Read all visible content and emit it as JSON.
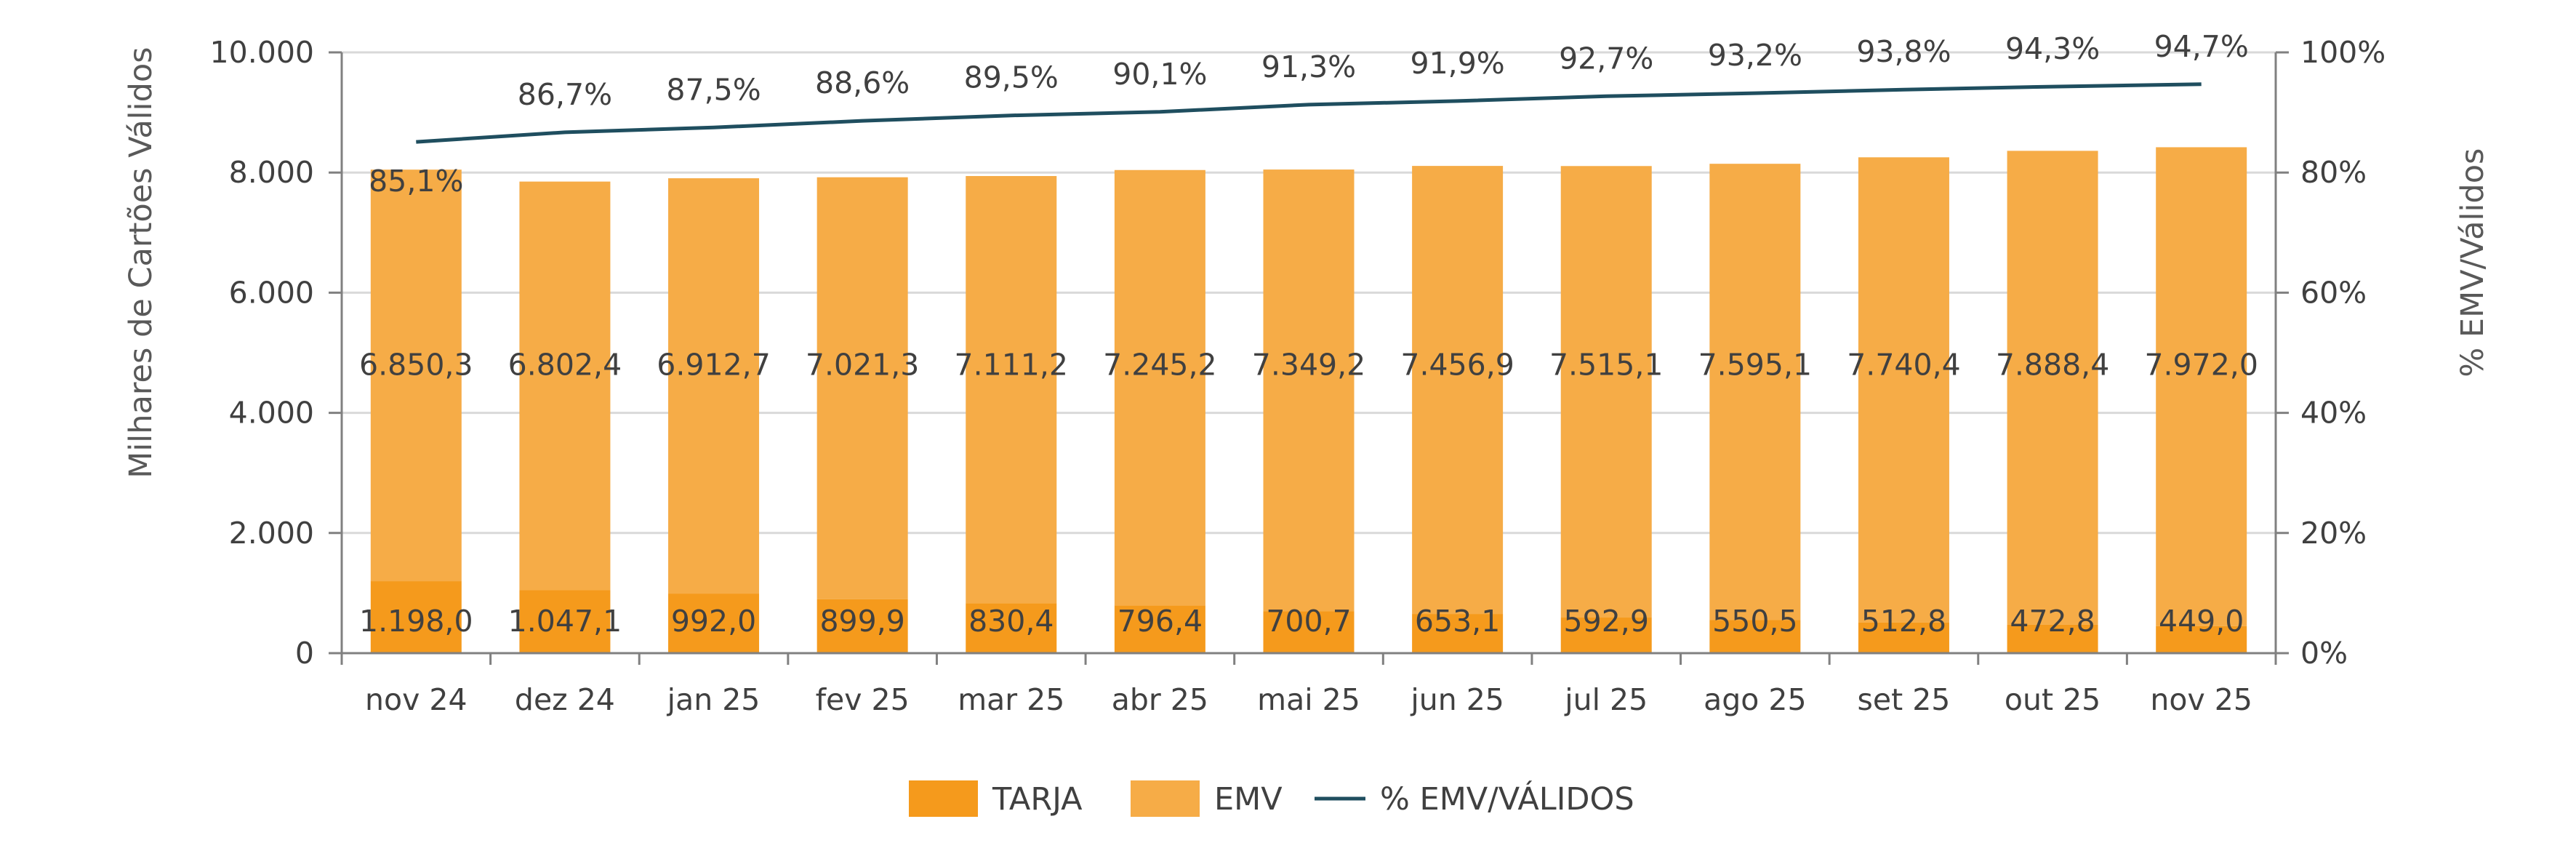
{
  "chart_data": {
    "type": "bar",
    "stacked": true,
    "categories": [
      "nov 24",
      "dez 24",
      "jan 25",
      "fev 25",
      "mar 25",
      "abr 25",
      "mai 25",
      "jun 25",
      "jul 25",
      "ago 25",
      "set 25",
      "out 25",
      "nov 25"
    ],
    "series": [
      {
        "name": "TARJA",
        "color": "#F59A1C",
        "values": [
          1198.0,
          1047.1,
          992.0,
          899.9,
          830.4,
          796.4,
          700.7,
          653.1,
          592.9,
          550.5,
          512.8,
          472.8,
          449.0
        ],
        "labels": [
          "1.198,0",
          "1.047,1",
          "992,0",
          "899,9",
          "830,4",
          "796,4",
          "700,7",
          "653,1",
          "592,9",
          "550,5",
          "512,8",
          "472,8",
          "449,0"
        ]
      },
      {
        "name": "EMV",
        "color": "#F6AC47",
        "values": [
          6850.3,
          6802.4,
          6912.7,
          7021.3,
          7111.2,
          7245.2,
          7349.2,
          7456.9,
          7515.1,
          7595.1,
          7740.4,
          7888.4,
          7972.0
        ],
        "labels": [
          "6.850,3",
          "6.802,4",
          "6.912,7",
          "7.021,3",
          "7.111,2",
          "7.245,2",
          "7.349,2",
          "7.456,9",
          "7.515,1",
          "7.595,1",
          "7.740,4",
          "7.888,4",
          "7.972,0"
        ]
      }
    ],
    "line_series": {
      "name": "% EMV/VÁLIDOS",
      "color": "#1F4E5F",
      "axis": "right",
      "values": [
        85.1,
        86.7,
        87.5,
        88.6,
        89.5,
        90.1,
        91.3,
        91.9,
        92.7,
        93.2,
        93.8,
        94.3,
        94.7
      ],
      "labels": [
        "85,1%",
        "86,7%",
        "87,5%",
        "88,6%",
        "89,5%",
        "90,1%",
        "91,3%",
        "91,9%",
        "92,7%",
        "93,2%",
        "93,8%",
        "94,3%",
        "94,7%"
      ]
    },
    "y_left": {
      "label": "Milhares de Cartões Válidos",
      "range": [
        0,
        10000
      ],
      "ticks": [
        0,
        2000,
        4000,
        6000,
        8000,
        10000
      ],
      "tick_labels": [
        "0",
        "2.000",
        "4.000",
        "6.000",
        "8.000",
        "10.000"
      ]
    },
    "y_right": {
      "label": "% EMV/Válidos",
      "range": [
        0,
        100
      ],
      "ticks": [
        0,
        20,
        40,
        60,
        80,
        100
      ],
      "tick_labels": [
        "0%",
        "20%",
        "40%",
        "60%",
        "80%",
        "100%"
      ]
    },
    "grid": true,
    "legend_position": "bottom-center",
    "legend": [
      "TARJA",
      "EMV",
      "% EMV/VÁLIDOS"
    ]
  }
}
